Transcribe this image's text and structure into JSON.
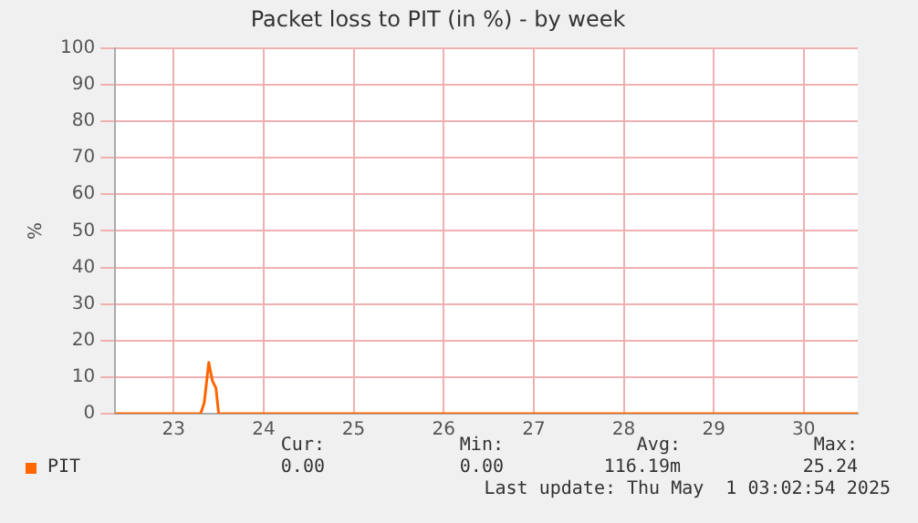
{
  "chart_data": {
    "type": "line",
    "title": "Packet loss to PIT (in %) - by week",
    "ylabel": "%",
    "x": [
      22.35,
      23.3,
      23.34,
      23.39,
      23.43,
      23.47,
      23.5,
      30.6
    ],
    "series": [
      {
        "name": "PIT",
        "color": "#ff6600",
        "values": [
          0,
          0,
          3,
          14,
          9,
          7,
          0,
          0
        ]
      }
    ],
    "xlim": [
      22.35,
      30.6
    ],
    "xticks": [
      23,
      24,
      25,
      26,
      27,
      28,
      29,
      30
    ],
    "ylim": [
      0,
      100
    ],
    "yticks": [
      0,
      10,
      20,
      30,
      40,
      50,
      60,
      70,
      80,
      90,
      100
    ],
    "grid": true,
    "legend": "bottom left",
    "marker": "none",
    "line_style": "solid",
    "annotations": [
      "Cur:",
      "Min:",
      "Avg:",
      "Max:",
      "0.00",
      "0.00",
      "116.19m",
      "25.24",
      "Last update: Thu May  1 03:02:54 2025"
    ]
  }
}
